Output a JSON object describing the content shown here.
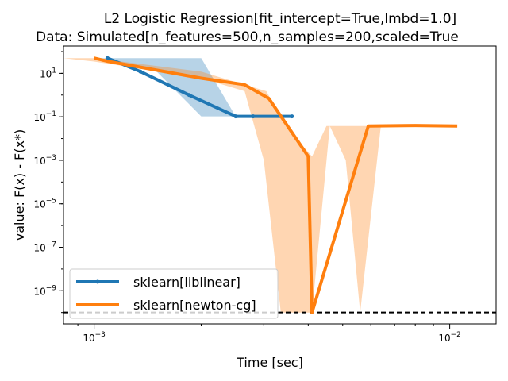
{
  "chart_data": {
    "type": "line",
    "title": "L2 Logistic Regression[fit_intercept=True,lmbd=1.0]",
    "subtitle": "Data: Simulated[n_features=500,n_samples=200,scaled=True",
    "xlabel": "Time [sec]",
    "ylabel": "value: F(x) - F(x*)",
    "xscale": "log",
    "yscale": "log",
    "xlim": [
      0.00082,
      0.0135
    ],
    "ylim": [
      3e-11,
      180
    ],
    "xticks": [
      {
        "value": 0.001,
        "base": "10",
        "exp": "−3"
      },
      {
        "value": 0.01,
        "base": "10",
        "exp": "−2"
      }
    ],
    "yticks": [
      {
        "value": 10,
        "base": "10",
        "exp": "1"
      },
      {
        "value": 0.1,
        "base": "10",
        "exp": "−1"
      },
      {
        "value": 0.001,
        "base": "10",
        "exp": "−3"
      },
      {
        "value": 1e-05,
        "base": "10",
        "exp": "−5"
      },
      {
        "value": 1e-07,
        "base": "10",
        "exp": "−7"
      },
      {
        "value": 1e-09,
        "base": "10",
        "exp": "−9"
      }
    ],
    "reference_line": {
      "y": 1e-10,
      "style": "dashed",
      "color": "#000000"
    },
    "legend": "lower-left",
    "grid": false,
    "series": [
      {
        "name": "sklearn[liblinear]",
        "color": "#1f77b4",
        "x": [
          0.00109,
          0.00135,
          0.00185,
          0.0025,
          0.0028,
          0.0036
        ],
        "y": [
          50,
          12,
          1.0,
          0.105,
          0.105,
          0.105
        ],
        "band_upper": [
          [
            0.001,
            50
          ],
          [
            0.0015,
            50
          ],
          [
            0.002,
            50
          ],
          [
            0.0025,
            0.105
          ],
          [
            0.0049,
            0.105
          ]
        ],
        "band_lower": [
          [
            0.001,
            50
          ],
          [
            0.0015,
            12
          ],
          [
            0.002,
            0.105
          ],
          [
            0.0025,
            0.105
          ],
          [
            0.0049,
            0.105
          ]
        ]
      },
      {
        "name": "sklearn[newton-cg]",
        "color": "#ff7f0e",
        "x": [
          0.001,
          0.0011,
          0.002,
          0.00265,
          0.0031,
          0.004,
          0.0041,
          0.0059,
          0.008,
          0.0105
        ],
        "y": [
          50,
          35,
          6,
          3,
          0.7,
          0.0015,
          1e-10,
          0.038,
          0.04,
          0.038
        ],
        "band_upper": [
          [
            0.00082,
            50
          ],
          [
            0.001,
            50
          ],
          [
            0.002,
            12
          ],
          [
            0.00265,
            3
          ],
          [
            0.00305,
            1.5
          ],
          [
            0.00345,
            0.038
          ],
          [
            0.0041,
            0.0015
          ],
          [
            0.0045,
            0.038
          ],
          [
            0.006,
            0.038
          ],
          [
            0.013,
            0.038
          ]
        ],
        "band_lower": [
          [
            0.00082,
            50
          ],
          [
            0.001,
            35
          ],
          [
            0.002,
            6
          ],
          [
            0.00265,
            1.5
          ],
          [
            0.003,
            0.001
          ],
          [
            0.00335,
            1e-10
          ],
          [
            0.0041,
            1e-10
          ],
          [
            0.0046,
            0.038
          ],
          [
            0.0051,
            0.001
          ],
          [
            0.0056,
            1e-10
          ],
          [
            0.0064,
            0.038
          ],
          [
            0.013,
            0.038
          ]
        ]
      }
    ]
  }
}
